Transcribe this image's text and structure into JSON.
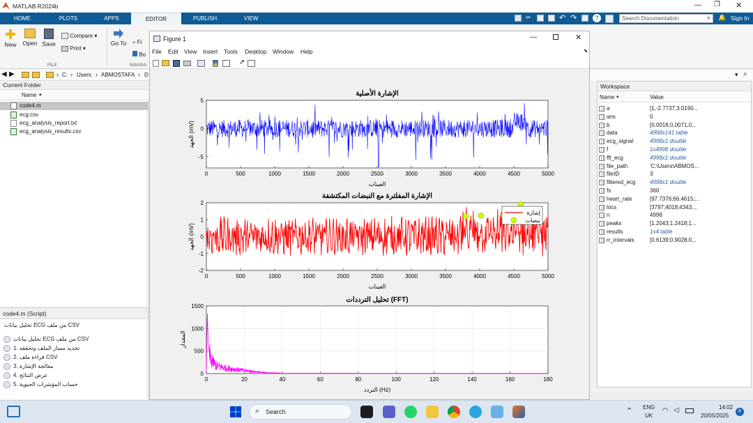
{
  "window": {
    "title": "MATLAB R2024b",
    "search_placeholder": "Search Documentation",
    "signin": "Sign In"
  },
  "tabs": [
    "HOME",
    "PLOTS",
    "APPS",
    "EDITOR",
    "PUBLISH",
    "VIEW"
  ],
  "ribbon": {
    "new": "New",
    "open": "Open",
    "save": "Save",
    "compare": "Compare",
    "print": "Print",
    "file_group": "FILE",
    "goto": "Go To",
    "find_partial": "Fi",
    "bookmark_partial": "Bo",
    "navigate_group": "NAVIGA"
  },
  "address": {
    "drive": "C:",
    "p1": "Users",
    "p2": "ABMOSTAFA",
    "p3": "D"
  },
  "current_folder": {
    "title": "Current Folder",
    "col_name": "Name",
    "files": [
      {
        "name": "code4.m",
        "selected": true
      },
      {
        "name": "ecg.csv",
        "selected": false
      },
      {
        "name": "ecg_analysis_report.txt",
        "selected": false
      },
      {
        "name": "ecg_analysis_results.csv",
        "selected": false
      }
    ]
  },
  "script_panel": {
    "title": "code4.m  (Script)",
    "lines": [
      "CSV من ملف ECG تحليل بيانات",
      "تحليل بيانات ECG من ملف CSV",
      "1. تحديد مسار الملف وتحققه",
      "2. قراءة ملف CSV",
      "3. معالجة الإشارة",
      "4. عرض النتائج",
      "5. حساب المؤشرات الحيوية"
    ]
  },
  "figure": {
    "title": "Figure 1",
    "menu": [
      "File",
      "Edit",
      "View",
      "Insert",
      "Tools",
      "Desktop",
      "Window",
      "Help"
    ]
  },
  "workspace": {
    "title": "Workspace",
    "col_name": "Name",
    "col_value": "Value",
    "vars": [
      {
        "name": "a",
        "value": "[1,-2.7737,3.0190...",
        "italic": false
      },
      {
        "name": "ans",
        "value": "0",
        "italic": false
      },
      {
        "name": "b",
        "value": "[0.0018,0,0071,0...",
        "italic": false
      },
      {
        "name": "data",
        "value": "4998x141 table",
        "italic": true
      },
      {
        "name": "ecg_signal",
        "value": "4998x1 double",
        "italic": true
      },
      {
        "name": "f",
        "value": "1x4998 double",
        "italic": true
      },
      {
        "name": "fft_ecg",
        "value": "4998x1 double",
        "italic": true
      },
      {
        "name": "file_path",
        "value": "'C:\\Users\\ABMOS...",
        "italic": false
      },
      {
        "name": "fileID",
        "value": "3",
        "italic": false
      },
      {
        "name": "filtered_ecg",
        "value": "4998x1 double",
        "italic": true
      },
      {
        "name": "fs",
        "value": "360",
        "italic": false
      },
      {
        "name": "heart_rate",
        "value": "[97.7376;66.4615;...",
        "italic": false
      },
      {
        "name": "locs",
        "value": "[3797;4018;4343;...",
        "italic": false
      },
      {
        "name": "n",
        "value": "4998",
        "italic": false
      },
      {
        "name": "peaks",
        "value": "[1.2043;1.2418;1...",
        "italic": false
      },
      {
        "name": "results",
        "value": "1x4 table",
        "italic": true
      },
      {
        "name": "rr_intervals",
        "value": "[0.6139;0.9028;0...",
        "italic": false
      }
    ]
  },
  "taskbar": {
    "search": "Search",
    "lang": "ENG",
    "region": "UK",
    "time": "14:02",
    "date": "20/05/2025",
    "badge": "6"
  },
  "colors": {
    "accent": "#0e5b95",
    "raw_signal": "#0000ff",
    "filtered_signal": "#ff0000",
    "fft_signal": "#ff00ff",
    "peaks": "#ccff00"
  },
  "chart_data": [
    {
      "type": "line",
      "title": "الإشارة الأصلية",
      "xlabel": "العينات",
      "ylabel": "الجهد (mV)",
      "xlim": [
        0,
        5000
      ],
      "ylim": [
        -7,
        5
      ],
      "xticks": [
        "0",
        "500",
        "1000",
        "1500",
        "2000",
        "2500",
        "3000",
        "3500",
        "4000",
        "4500",
        "5000"
      ],
      "yticks": [
        "5",
        "0",
        "-5"
      ],
      "series": [
        {
          "color": "#0000ff",
          "samples": 4998,
          "min": -6.8,
          "max": 4.5,
          "x": [
            0,
            1000,
            2000,
            2500,
            3000,
            4000,
            4600,
            5000
          ],
          "y": [
            0,
            0.3,
            0,
            -6.5,
            0.2,
            0.5,
            1.5,
            -1
          ]
        }
      ]
    },
    {
      "type": "line",
      "title": "الإشارة المفلترة مع النبضات المكتشفة",
      "xlabel": "العينات",
      "ylabel": "الجهد (mV)",
      "xlim": [
        0,
        5000
      ],
      "ylim": [
        -2,
        2
      ],
      "xticks": [
        "0",
        "500",
        "1000",
        "1500",
        "2000",
        "2500",
        "3000",
        "3500",
        "4000",
        "4500",
        "5000"
      ],
      "yticks": [
        "2",
        "1",
        "0",
        "-1",
        "-2"
      ],
      "legend": [
        "إشارة",
        "نبضات"
      ],
      "legend_position": "top-right",
      "series": [
        {
          "name": "إشارة",
          "color": "#ff0000",
          "samples": 4998,
          "min": -1.8,
          "max": 1.9
        },
        {
          "name": "نبضات",
          "type": "scatter",
          "color": "#ccff00",
          "x": [
            3797,
            4018,
            4343,
            4600
          ],
          "y": [
            1.2043,
            1.2418,
            1.25,
            1.9
          ]
        }
      ]
    },
    {
      "type": "area",
      "title": "تحليل الترددات (FFT)",
      "xlabel": "التردد (Hz)",
      "ylabel": "المقدار",
      "xlim": [
        0,
        180
      ],
      "ylim": [
        0,
        1500
      ],
      "xticks": [
        "0",
        "20",
        "40",
        "60",
        "80",
        "100",
        "120",
        "140",
        "160",
        "180"
      ],
      "yticks": [
        "1500",
        "1000",
        "500",
        "0"
      ],
      "grid": true,
      "series": [
        {
          "color": "#ff00ff",
          "x": [
            0,
            0.5,
            1,
            2,
            5,
            10,
            20,
            30,
            40,
            180
          ],
          "y": [
            0,
            1350,
            650,
            300,
            160,
            110,
            60,
            20,
            5,
            3
          ]
        }
      ]
    }
  ]
}
